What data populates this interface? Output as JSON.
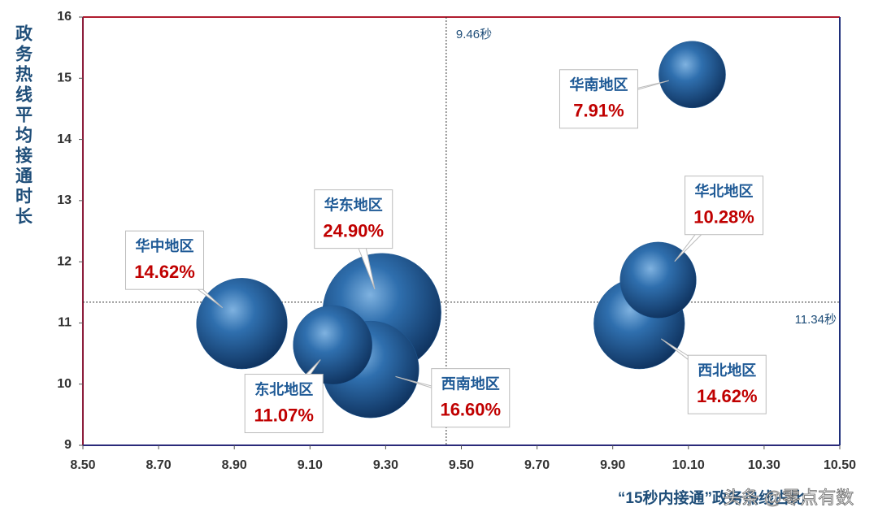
{
  "chart_data": {
    "type": "bubble",
    "y_label": "政务热线平均接通时长",
    "x_label": "“15秒内接通”政务热线占比",
    "watermark": "头条 @零点有数",
    "labels": [
      "华南地区",
      "华北地区",
      "西北地区",
      "华中地区",
      "华东地区",
      "东北地区",
      "西南地区"
    ],
    "x": [
      10.11,
      10.02,
      9.97,
      8.92,
      9.29,
      9.16,
      9.26
    ],
    "values": [
      15.06,
      11.7,
      10.99,
      10.99,
      11.17,
      10.64,
      10.24
    ],
    "sizes": [
      7.91,
      10.28,
      14.62,
      14.62,
      24.9,
      11.07,
      16.6
    ],
    "value_labels": [
      "7.91%",
      "10.28%",
      "14.62%",
      "14.62%",
      "24.90%",
      "11.07%",
      "16.60%"
    ],
    "color": "#1f5a96",
    "xlim": [
      8.5,
      10.5
    ],
    "xticks": [
      {
        "value": 8.5,
        "label": "8.50"
      },
      {
        "value": 8.7,
        "label": "8.70"
      },
      {
        "value": 8.9,
        "label": "8.90"
      },
      {
        "value": 9.1,
        "label": "9.10"
      },
      {
        "value": 9.3,
        "label": "9.30"
      },
      {
        "value": 9.5,
        "label": "9.50"
      },
      {
        "value": 9.7,
        "label": "9.70"
      },
      {
        "value": 9.9,
        "label": "9.90"
      },
      {
        "value": 10.1,
        "label": "10.10"
      },
      {
        "value": 10.3,
        "label": "10.30"
      },
      {
        "value": 10.5,
        "label": "10.50"
      }
    ],
    "ylim": [
      9,
      16
    ],
    "yticks": [
      9,
      10,
      11,
      12,
      13,
      14,
      15,
      16
    ],
    "reference_lines": [
      {
        "axis": "x",
        "value": 9.46,
        "label": "9.46秒"
      },
      {
        "axis": "y",
        "value": 11.34,
        "label": "11.34秒"
      }
    ],
    "grid": false
  }
}
